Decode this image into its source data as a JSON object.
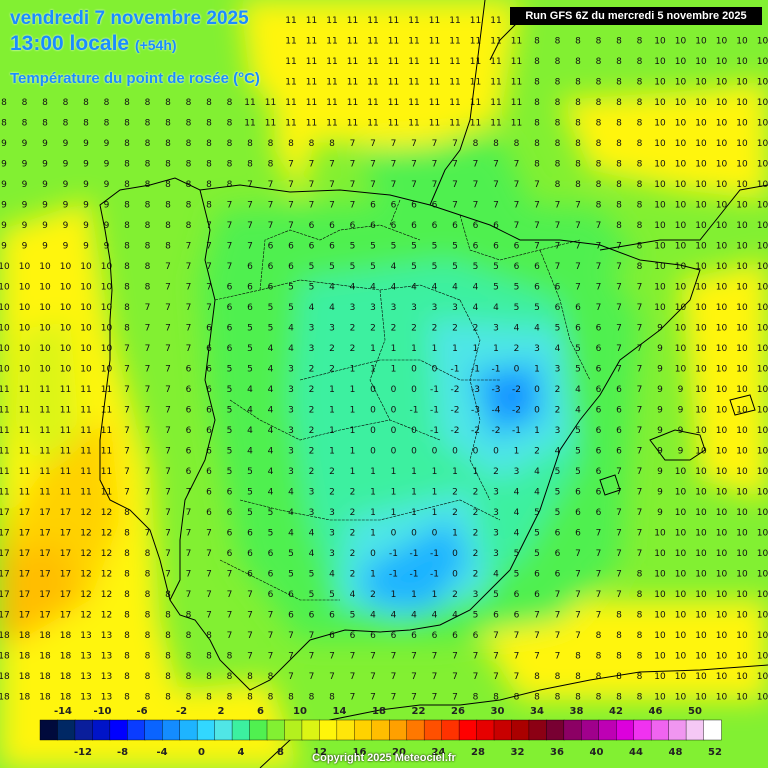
{
  "header": {
    "date": "vendredi 7 novembre 2025",
    "time": "13:00 locale",
    "lead": "(+54h)",
    "variable": "Température du point de rosée (°C)",
    "run": "Run GFS 6Z du mercredi 5 novembre 2025"
  },
  "footer": {
    "copyright": "Copyright 2025 Meteociel.fr"
  },
  "legend": {
    "top_labels": [
      "-14",
      "-10",
      "-6",
      "-2",
      "2",
      "6",
      "10",
      "14",
      "18",
      "22",
      "26",
      "30",
      "34",
      "38",
      "42",
      "46",
      "50"
    ],
    "bottom_labels": [
      "-12",
      "-8",
      "-4",
      "0",
      "4",
      "8",
      "12",
      "16",
      "20",
      "24",
      "28",
      "32",
      "36",
      "40",
      "44",
      "48",
      "52"
    ],
    "colors": [
      "#000a3c",
      "#002864",
      "#0a1e9b",
      "#0014c8",
      "#0000ff",
      "#0a3cff",
      "#0a64ff",
      "#148cff",
      "#1eb4ff",
      "#32d7ff",
      "#50e6e6",
      "#3cf0a0",
      "#50f050",
      "#82f032",
      "#b4f01e",
      "#dcf514",
      "#fff50a",
      "#ffe60a",
      "#ffd200",
      "#ffbe00",
      "#ffa000",
      "#ff7800",
      "#ff5000",
      "#ff3200",
      "#ff0000",
      "#e60000",
      "#c80000",
      "#aa0000",
      "#8c0014",
      "#780032",
      "#8c0064",
      "#a0008c",
      "#be00b4",
      "#dc00dc",
      "#f032f0",
      "#f064f0",
      "#f096f0",
      "#f5c8f5",
      "#ffffff"
    ]
  },
  "colors": {
    "title": "#1a8cff",
    "border": "#000000"
  },
  "features": [
    "coastline-iberia",
    "coastline-france",
    "coastline-north-africa",
    "balearic-islands",
    "regional-borders"
  ]
}
